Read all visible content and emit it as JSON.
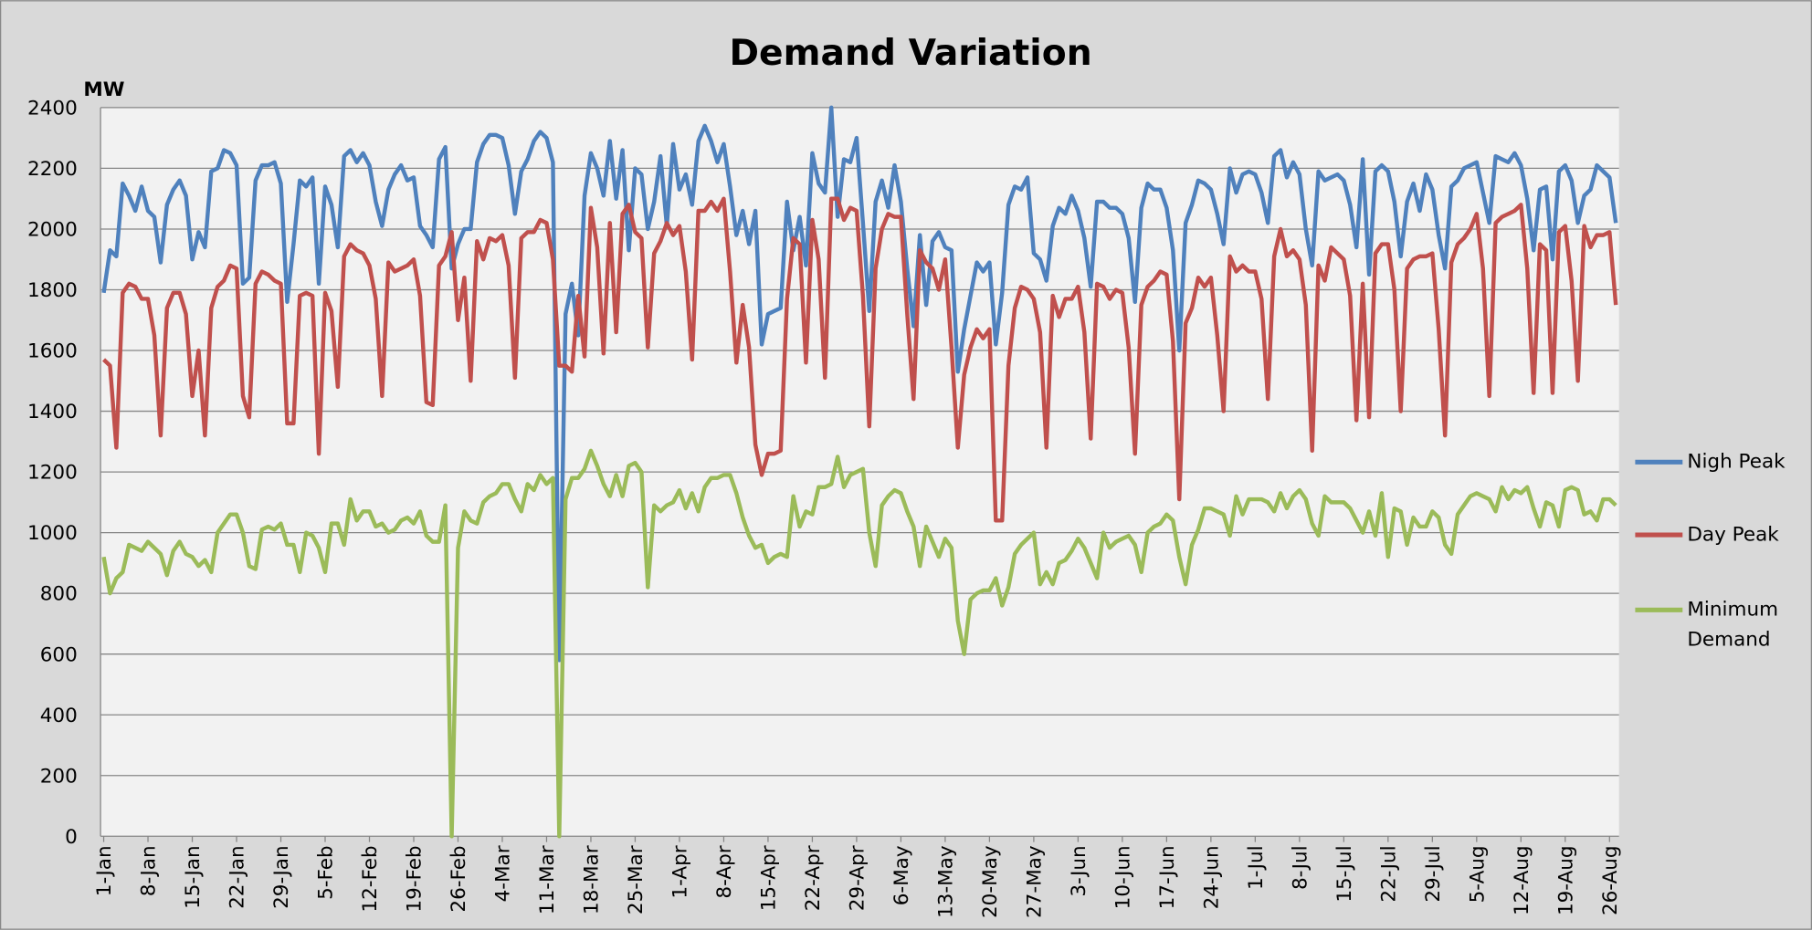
{
  "chart_data": {
    "type": "line",
    "title": "Demand Variation",
    "y_label": "MW",
    "categories": [
      "1-Jan",
      null,
      null,
      null,
      null,
      null,
      null,
      "8-Jan",
      null,
      null,
      null,
      null,
      null,
      null,
      "15-Jan",
      null,
      null,
      null,
      null,
      null,
      null,
      "22-Jan",
      null,
      null,
      null,
      null,
      null,
      null,
      "29-Jan",
      null,
      null,
      null,
      null,
      null,
      null,
      "5-Feb",
      null,
      null,
      null,
      null,
      null,
      null,
      "12-Feb",
      null,
      null,
      null,
      null,
      null,
      null,
      "19-Feb",
      null,
      null,
      null,
      null,
      null,
      null,
      "26-Feb",
      null,
      null,
      null,
      null,
      null,
      null,
      "4-Mar",
      null,
      null,
      null,
      null,
      null,
      null,
      "11-Mar",
      null,
      null,
      null,
      null,
      null,
      null,
      "18-Mar",
      null,
      null,
      null,
      null,
      null,
      null,
      "25-Mar",
      null,
      null,
      null,
      null,
      null,
      null,
      "1-Apr",
      null,
      null,
      null,
      null,
      null,
      null,
      "8-Apr",
      null,
      null,
      null,
      null,
      null,
      null,
      "15-Apr",
      null,
      null,
      null,
      null,
      null,
      null,
      "22-Apr",
      null,
      null,
      null,
      null,
      null,
      null,
      "29-Apr",
      null,
      null,
      null,
      null,
      null,
      null,
      "6-May",
      null,
      null,
      null,
      null,
      null,
      null,
      "13-May",
      null,
      null,
      null,
      null,
      null,
      null,
      "20-May",
      null,
      null,
      null,
      null,
      null,
      null,
      "27-May",
      null,
      null,
      null,
      null,
      null,
      null,
      "3-Jun",
      null,
      null,
      null,
      null,
      null,
      null,
      "10-Jun",
      null,
      null,
      null,
      null,
      null,
      null,
      "17-Jun",
      null,
      null,
      null,
      null,
      null,
      null,
      "24-Jun",
      null,
      null,
      null,
      null,
      null,
      null,
      "1-Jul",
      null,
      null,
      null,
      null,
      null,
      null,
      "8-Jul",
      null,
      null,
      null,
      null,
      null,
      null,
      "15-Jul",
      null,
      null,
      null,
      null,
      null,
      null,
      "22-Jul",
      null,
      null,
      null,
      null,
      null,
      null,
      "29-Jul",
      null,
      null,
      null,
      null,
      null,
      null,
      "5-Aug",
      null,
      null,
      null,
      null,
      null,
      null,
      "12-Aug",
      null,
      null,
      null,
      null,
      null,
      null,
      "19-Aug",
      null,
      null,
      null,
      null,
      null,
      null,
      "26-Aug",
      null
    ],
    "series": [
      {
        "name": "Nigh Peak",
        "color": "#4f81bd",
        "values": [
          1790,
          1930,
          1910,
          2150,
          2110,
          2060,
          2140,
          2060,
          2040,
          1890,
          2080,
          2130,
          2160,
          2110,
          1900,
          1990,
          1940,
          2190,
          2200,
          2260,
          2250,
          2210,
          1820,
          1840,
          2160,
          2210,
          2210,
          2220,
          2150,
          1760,
          1950,
          2160,
          2140,
          2170,
          1820,
          2140,
          2080,
          1940,
          2240,
          2260,
          2220,
          2250,
          2210,
          2090,
          2010,
          2130,
          2180,
          2210,
          2160,
          2170,
          2010,
          1980,
          1940,
          2230,
          2270,
          1870,
          1950,
          2000,
          2000,
          2220,
          2280,
          2310,
          2310,
          2300,
          2210,
          2050,
          2190,
          2230,
          2290,
          2320,
          2300,
          2220,
          580,
          1720,
          1820,
          1650,
          2110,
          2250,
          2200,
          2110,
          2290,
          2100,
          2260,
          1930,
          2200,
          2180,
          2000,
          2090,
          2240,
          2010,
          2280,
          2130,
          2180,
          2080,
          2290,
          2340,
          2290,
          2220,
          2280,
          2140,
          1980,
          2060,
          1950,
          2060,
          1620,
          1720,
          1730,
          1740,
          2090,
          1930,
          2040,
          1880,
          2250,
          2150,
          2120,
          2400,
          2040,
          2230,
          2220,
          2300,
          2020,
          1730,
          2090,
          2160,
          2070,
          2210,
          2090,
          1870,
          1680,
          1980,
          1750,
          1960,
          1990,
          1940,
          1930,
          1530,
          1670,
          1780,
          1890,
          1860,
          1890,
          1620,
          1790,
          2080,
          2140,
          2130,
          2170,
          1920,
          1900,
          1830,
          2010,
          2070,
          2050,
          2110,
          2060,
          1970,
          1810,
          2090,
          2090,
          2070,
          2070,
          2050,
          1970,
          1760,
          2070,
          2150,
          2130,
          2130,
          2070,
          1930,
          1600,
          2020,
          2080,
          2160,
          2150,
          2130,
          2050,
          1950,
          2200,
          2120,
          2180,
          2190,
          2180,
          2120,
          2020,
          2240,
          2260,
          2170,
          2220,
          2180,
          2000,
          1880,
          2190,
          2160,
          2170,
          2180,
          2160,
          2080,
          1940,
          2230,
          1850,
          2190,
          2210,
          2190,
          2090,
          1910,
          2090,
          2150,
          2060,
          2180,
          2130,
          1980,
          1870,
          2140,
          2160,
          2200,
          2210,
          2220,
          2120,
          2020,
          2240,
          2230,
          2220,
          2250,
          2210,
          2100,
          1930,
          2130,
          2140,
          1900,
          2190,
          2210,
          2160,
          2020,
          2110,
          2130,
          2210,
          2190,
          2170,
          2020
        ]
      },
      {
        "name": "Day Peak",
        "color": "#c0504d",
        "values": [
          1570,
          1550,
          1280,
          1790,
          1820,
          1810,
          1770,
          1770,
          1650,
          1320,
          1740,
          1790,
          1790,
          1720,
          1450,
          1600,
          1320,
          1740,
          1810,
          1830,
          1880,
          1870,
          1450,
          1380,
          1820,
          1860,
          1850,
          1830,
          1820,
          1360,
          1360,
          1780,
          1790,
          1780,
          1260,
          1790,
          1730,
          1480,
          1910,
          1950,
          1930,
          1920,
          1880,
          1770,
          1450,
          1890,
          1860,
          1870,
          1880,
          1900,
          1780,
          1430,
          1420,
          1880,
          1910,
          1990,
          1700,
          1840,
          1500,
          1960,
          1900,
          1970,
          1960,
          1980,
          1880,
          1510,
          1970,
          1990,
          1990,
          2030,
          2020,
          1900,
          1550,
          1550,
          1530,
          1780,
          1580,
          2070,
          1940,
          1590,
          2020,
          1660,
          2050,
          2080,
          1990,
          1970,
          1610,
          1920,
          1960,
          2020,
          1980,
          2010,
          1860,
          1570,
          2060,
          2060,
          2090,
          2060,
          2100,
          1860,
          1560,
          1750,
          1610,
          1290,
          1190,
          1260,
          1260,
          1270,
          1770,
          1970,
          1950,
          1560,
          2030,
          1900,
          1510,
          2100,
          2100,
          2030,
          2070,
          2060,
          1780,
          1350,
          1870,
          2000,
          2050,
          2040,
          2040,
          1720,
          1440,
          1930,
          1890,
          1870,
          1800,
          1900,
          1610,
          1280,
          1520,
          1610,
          1670,
          1640,
          1670,
          1040,
          1040,
          1550,
          1740,
          1810,
          1800,
          1770,
          1660,
          1280,
          1780,
          1710,
          1770,
          1770,
          1810,
          1660,
          1310,
          1820,
          1810,
          1770,
          1800,
          1790,
          1610,
          1260,
          1750,
          1810,
          1830,
          1860,
          1850,
          1630,
          1110,
          1690,
          1740,
          1840,
          1810,
          1840,
          1650,
          1400,
          1910,
          1860,
          1880,
          1860,
          1860,
          1770,
          1440,
          1910,
          2000,
          1910,
          1930,
          1900,
          1750,
          1270,
          1880,
          1830,
          1940,
          1920,
          1900,
          1780,
          1370,
          1820,
          1380,
          1920,
          1950,
          1950,
          1800,
          1400,
          1870,
          1900,
          1910,
          1910,
          1920,
          1670,
          1320,
          1890,
          1950,
          1970,
          2000,
          2050,
          1870,
          1450,
          2020,
          2040,
          2050,
          2060,
          2080,
          1870,
          1460,
          1950,
          1930,
          1460,
          1990,
          2010,
          1830,
          1500,
          2010,
          1940,
          1980,
          1980,
          1990,
          1750
        ]
      },
      {
        "name": "Minimum Demand",
        "color": "#9bbb59",
        "values": [
          920,
          800,
          850,
          870,
          960,
          950,
          940,
          970,
          950,
          930,
          860,
          940,
          970,
          930,
          920,
          890,
          910,
          870,
          1000,
          1030,
          1060,
          1060,
          1000,
          890,
          880,
          1010,
          1020,
          1010,
          1030,
          960,
          960,
          870,
          1000,
          990,
          950,
          870,
          1030,
          1030,
          960,
          1110,
          1040,
          1070,
          1070,
          1020,
          1030,
          1000,
          1010,
          1040,
          1050,
          1030,
          1070,
          990,
          970,
          970,
          1090,
          0,
          950,
          1070,
          1040,
          1030,
          1100,
          1120,
          1130,
          1160,
          1160,
          1110,
          1070,
          1160,
          1140,
          1190,
          1160,
          1180,
          0,
          1110,
          1180,
          1180,
          1210,
          1270,
          1220,
          1160,
          1120,
          1190,
          1120,
          1220,
          1230,
          1200,
          820,
          1090,
          1070,
          1090,
          1100,
          1140,
          1080,
          1130,
          1070,
          1150,
          1180,
          1180,
          1190,
          1190,
          1130,
          1050,
          990,
          950,
          960,
          900,
          920,
          930,
          920,
          1120,
          1020,
          1070,
          1060,
          1150,
          1150,
          1160,
          1250,
          1150,
          1190,
          1200,
          1210,
          1000,
          890,
          1090,
          1120,
          1140,
          1130,
          1070,
          1020,
          890,
          1020,
          970,
          920,
          980,
          950,
          710,
          600,
          780,
          800,
          810,
          810,
          850,
          760,
          820,
          930,
          960,
          980,
          1000,
          830,
          870,
          830,
          900,
          910,
          940,
          980,
          950,
          900,
          850,
          1000,
          950,
          970,
          980,
          990,
          960,
          870,
          1000,
          1020,
          1030,
          1060,
          1040,
          920,
          830,
          960,
          1010,
          1080,
          1080,
          1070,
          1060,
          990,
          1120,
          1060,
          1110,
          1110,
          1110,
          1100,
          1070,
          1130,
          1080,
          1120,
          1140,
          1110,
          1030,
          990,
          1120,
          1100,
          1100,
          1100,
          1080,
          1040,
          1000,
          1070,
          990,
          1130,
          920,
          1080,
          1070,
          960,
          1050,
          1020,
          1020,
          1070,
          1050,
          960,
          930,
          1060,
          1090,
          1120,
          1130,
          1120,
          1110,
          1070,
          1150,
          1110,
          1140,
          1130,
          1150,
          1080,
          1020,
          1100,
          1090,
          1020,
          1140,
          1150,
          1140,
          1060,
          1070,
          1040,
          1110,
          1110,
          1090
        ]
      }
    ],
    "ylim": [
      0,
      2400
    ],
    "yticks": [
      0,
      200,
      400,
      600,
      800,
      1000,
      1200,
      1400,
      1600,
      1800,
      2000,
      2200,
      2400
    ],
    "grid": true,
    "legend": "right"
  }
}
